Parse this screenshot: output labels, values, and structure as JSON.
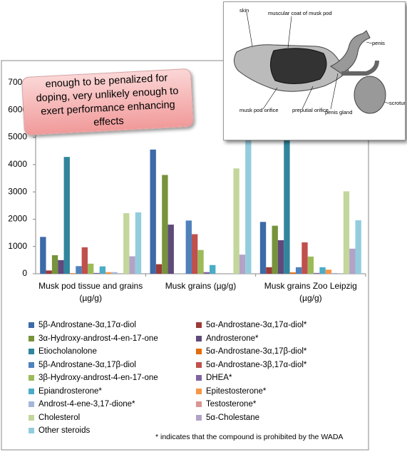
{
  "chart_data": {
    "type": "bar",
    "categories": [
      "Musk pod tissue and grains (µg/g)",
      "Musk grains (µg/g)",
      "Musk grains Zoo Leipzig (µg/g)"
    ],
    "ylim": [
      0,
      7000
    ],
    "yticks": [
      0,
      1000,
      2000,
      3000,
      4000,
      5000,
      6000,
      7000
    ],
    "grid": false,
    "series": [
      {
        "name": "5β-Androstane-3α,17α-diol",
        "color": "#3d6aa8",
        "values": [
          1350,
          4550,
          1900
        ]
      },
      {
        "name": "5α-Androstane-3α,17α-diol*",
        "color": "#9b3b38",
        "values": [
          120,
          350,
          240
        ]
      },
      {
        "name": "3α-Hydroxy-androst-4-en-17-one",
        "color": "#77933c",
        "values": [
          680,
          3620,
          1760
        ]
      },
      {
        "name": "Androsterone*",
        "color": "#5f4a7b",
        "values": [
          500,
          1800,
          1230
        ]
      },
      {
        "name": "Etiocholanolone",
        "color": "#31859c",
        "values": [
          4280,
          0,
          5600
        ]
      },
      {
        "name": "5α-Androstane-3α,17β-diol*",
        "color": "#e46c0a",
        "values": [
          20,
          0,
          50
        ]
      },
      {
        "name": "5β-Androstane-3α,17β-diol",
        "color": "#4f81bd",
        "values": [
          280,
          1950,
          240
        ]
      },
      {
        "name": "5α-Androstane-3β,17α-diol*",
        "color": "#c0504d",
        "values": [
          970,
          1450,
          1150
        ]
      },
      {
        "name": "3β-Hydroxy-androst-4-en-17-one",
        "color": "#9bbb59",
        "values": [
          370,
          870,
          630
        ]
      },
      {
        "name": "DHEA*",
        "color": "#8064a2",
        "values": [
          30,
          60,
          30
        ]
      },
      {
        "name": "Epiandrosterone*",
        "color": "#4bacc6",
        "values": [
          270,
          320,
          240
        ]
      },
      {
        "name": "Epitestosterone*",
        "color": "#f79646",
        "values": [
          60,
          0,
          150
        ]
      },
      {
        "name": "Androst-4-ene-3,17-dione*",
        "color": "#a5b6d8",
        "values": [
          60,
          0,
          30
        ]
      },
      {
        "name": "Testosterone*",
        "color": "#d99694",
        "values": [
          0,
          0,
          0
        ]
      },
      {
        "name": "Cholesterol",
        "color": "#c3d69b",
        "values": [
          2220,
          3860,
          3020
        ]
      },
      {
        "name": "5α-Cholestane",
        "color": "#b3a2c7",
        "values": [
          640,
          700,
          920
        ]
      },
      {
        "name": "Other steroids",
        "color": "#93cddd",
        "values": [
          2250,
          5280,
          1960
        ]
      }
    ],
    "footnote": "* indicates that the compound is prohibited by the WADA"
  },
  "callout": "enough to be penalized for doping, very unlikely enough to exert performance enhancing effects",
  "diagram": {
    "labels": [
      "skin",
      "muscular coat of musk pod",
      "penis",
      "scrotum",
      "musk pod orifice",
      "preputial orifice",
      "penis gland"
    ]
  }
}
